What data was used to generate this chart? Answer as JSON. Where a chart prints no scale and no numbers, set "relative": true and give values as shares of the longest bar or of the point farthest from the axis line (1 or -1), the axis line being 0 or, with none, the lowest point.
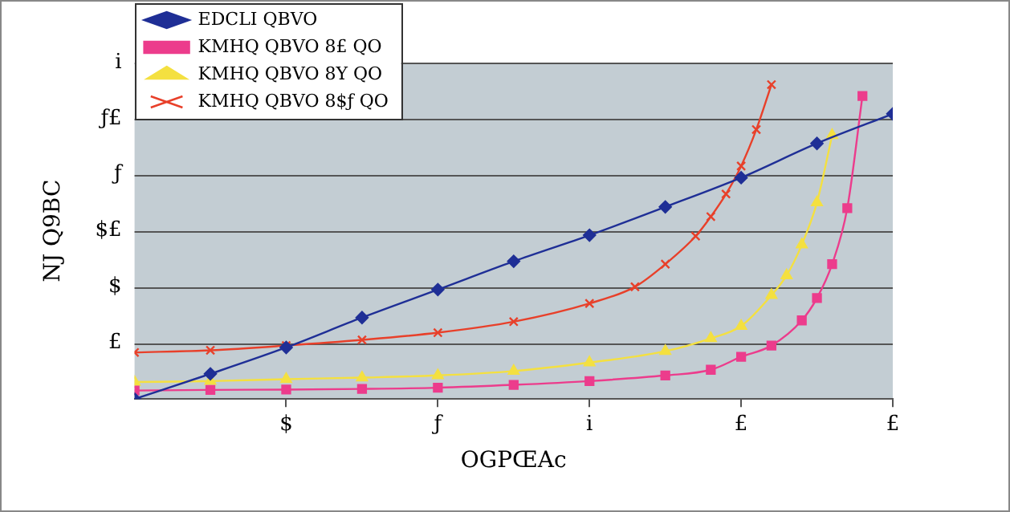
{
  "chart_data": {
    "type": "line",
    "xlabel": "OGPŒAc",
    "ylabel": "NJ Q9BC",
    "relative": true,
    "categories": [
      null,
      null,
      null,
      null,
      null,
      null,
      null,
      null,
      null,
      null,
      "$",
      null,
      null,
      null,
      null,
      null,
      null,
      null,
      null,
      null,
      "ƒ",
      null,
      null,
      null,
      null,
      null,
      null,
      null,
      null,
      null,
      "i",
      null,
      null,
      null,
      null,
      null,
      null,
      null,
      null,
      null,
      "£",
      null,
      null,
      null,
      null,
      null,
      null,
      null,
      null,
      null,
      "£"
    ],
    "annotations": [
      "£",
      "$",
      "$£",
      "ƒ",
      "ƒ£",
      "i"
    ],
    "grid": "y",
    "legend": "top left",
    "series": [
      {
        "name": "EDCLI QBVO",
        "color": "#1f2f96",
        "marker": "diamond",
        "values": [
          0,
          null,
          null,
          null,
          null,
          0.08,
          null,
          null,
          null,
          null,
          0.164,
          null,
          null,
          null,
          null,
          0.259,
          null,
          null,
          null,
          null,
          0.348,
          null,
          null,
          null,
          null,
          0.438,
          null,
          null,
          null,
          null,
          0.521,
          null,
          null,
          null,
          null,
          0.611,
          null,
          null,
          null,
          null,
          0.704,
          null,
          null,
          null,
          null,
          0.813,
          null,
          null,
          null,
          null,
          0.907
        ]
      },
      {
        "name": "KMHQ QBVO 8£ QO",
        "color": "#ec3c8c",
        "marker": "square",
        "values": [
          0.027,
          null,
          null,
          null,
          null,
          0.029,
          null,
          null,
          null,
          null,
          0.03,
          null,
          null,
          null,
          null,
          0.032,
          null,
          null,
          null,
          null,
          0.036,
          null,
          null,
          null,
          null,
          0.045,
          null,
          null,
          null,
          null,
          0.057,
          null,
          null,
          null,
          null,
          0.075,
          null,
          null,
          0.093,
          null,
          0.134,
          null,
          0.17,
          null,
          0.25,
          0.321,
          0.429,
          0.607,
          0.964,
          null,
          null
        ]
      },
      {
        "name": "KMHQ QBVO 8Y QO",
        "color": "#f4e040",
        "marker": "triangle",
        "values": [
          0.054,
          null,
          null,
          null,
          null,
          0.057,
          null,
          null,
          null,
          null,
          0.063,
          null,
          null,
          null,
          null,
          0.068,
          null,
          null,
          null,
          null,
          0.075,
          null,
          null,
          null,
          null,
          0.089,
          null,
          null,
          null,
          null,
          0.116,
          null,
          null,
          null,
          null,
          0.152,
          null,
          null,
          0.193,
          null,
          0.232,
          null,
          0.33,
          0.393,
          0.491,
          0.625,
          0.839,
          null,
          null,
          null,
          null
        ]
      },
      {
        "name": "KMHQ QBVO 8$ƒ QO",
        "color": "#e8402a",
        "marker": "cross",
        "values": [
          0.148,
          null,
          null,
          null,
          null,
          0.155,
          null,
          null,
          null,
          null,
          0.17,
          null,
          null,
          null,
          null,
          0.188,
          null,
          null,
          null,
          null,
          0.211,
          null,
          null,
          null,
          null,
          0.246,
          null,
          null,
          null,
          null,
          0.304,
          null,
          null,
          0.357,
          null,
          0.429,
          null,
          0.518,
          0.58,
          0.652,
          0.741,
          0.857,
          1,
          null,
          null,
          null,
          null,
          null,
          null,
          null,
          null
        ]
      }
    ]
  }
}
